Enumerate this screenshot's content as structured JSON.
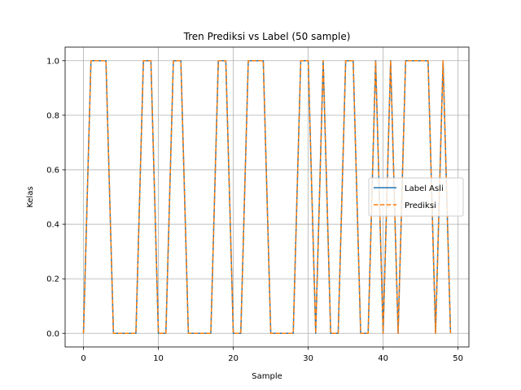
{
  "chart_data": {
    "type": "line",
    "title": "Tren Prediksi vs Label (50 sample)",
    "xlabel": "Sample",
    "ylabel": "Kelas",
    "xlim": [
      -2.45,
      51.45
    ],
    "ylim": [
      -0.05,
      1.05
    ],
    "xticks": [
      0,
      10,
      20,
      30,
      40,
      50
    ],
    "yticks": [
      0.0,
      0.2,
      0.4,
      0.6,
      0.8,
      1.0
    ],
    "xtick_labels": [
      "0",
      "10",
      "20",
      "30",
      "40",
      "50"
    ],
    "ytick_labels": [
      "0.0",
      "0.2",
      "0.4",
      "0.6",
      "0.8",
      "1.0"
    ],
    "grid": true,
    "legend_position": "center-right",
    "x": [
      0,
      1,
      2,
      3,
      4,
      5,
      6,
      7,
      8,
      9,
      10,
      11,
      12,
      13,
      14,
      15,
      16,
      17,
      18,
      19,
      20,
      21,
      22,
      23,
      24,
      25,
      26,
      27,
      28,
      29,
      30,
      31,
      32,
      33,
      34,
      35,
      36,
      37,
      38,
      39,
      40,
      41,
      42,
      43,
      44,
      45,
      46,
      47,
      48,
      49
    ],
    "series": [
      {
        "name": "Label Asli",
        "color": "#1f77b4",
        "style": "solid",
        "values": [
          0,
          1,
          1,
          1,
          0,
          0,
          0,
          0,
          1,
          1,
          0,
          0,
          1,
          1,
          0,
          0,
          0,
          0,
          1,
          1,
          0,
          0,
          1,
          1,
          1,
          0,
          0,
          0,
          0,
          1,
          1,
          0,
          1,
          0,
          0,
          1,
          1,
          0,
          0,
          1,
          0,
          1,
          0,
          1,
          1,
          1,
          1,
          0,
          1,
          0
        ]
      },
      {
        "name": "Prediksi",
        "color": "#ff7f0e",
        "style": "dashed",
        "values": [
          0,
          1,
          1,
          1,
          0,
          0,
          0,
          0,
          1,
          1,
          0,
          0,
          1,
          1,
          0,
          0,
          0,
          0,
          1,
          1,
          0,
          0,
          1,
          1,
          1,
          0,
          0,
          0,
          0,
          1,
          1,
          0,
          1,
          0,
          0,
          1,
          1,
          0,
          0,
          1,
          0,
          1,
          0,
          1,
          1,
          1,
          1,
          0,
          1,
          0
        ]
      }
    ]
  }
}
